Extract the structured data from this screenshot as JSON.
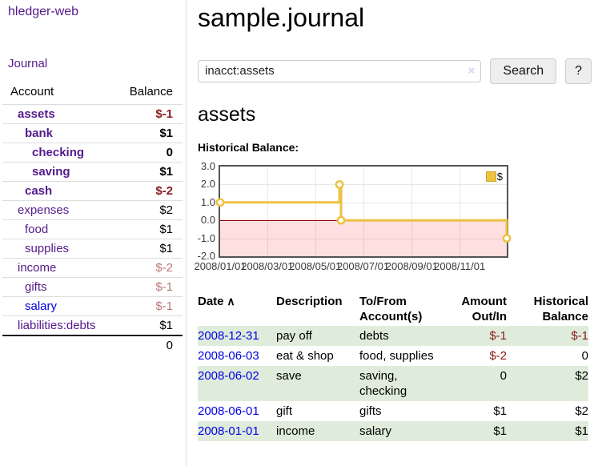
{
  "app": {
    "title": "hledger-web"
  },
  "sidebar": {
    "journal_link": "Journal",
    "headers": {
      "account": "Account",
      "balance": "Balance"
    },
    "accounts": [
      {
        "name": "assets",
        "depth": 0,
        "balance": "$-1",
        "bold": true
      },
      {
        "name": "bank",
        "depth": 1,
        "balance": "$1",
        "bold": true
      },
      {
        "name": "checking",
        "depth": 2,
        "balance": "0",
        "bold": true
      },
      {
        "name": "saving",
        "depth": 2,
        "balance": "$1",
        "bold": true
      },
      {
        "name": "cash",
        "depth": 1,
        "balance": "$-2",
        "bold": true
      },
      {
        "name": "expenses",
        "depth": 0,
        "balance": "$2"
      },
      {
        "name": "food",
        "depth": 1,
        "balance": "$1"
      },
      {
        "name": "supplies",
        "depth": 1,
        "balance": "$1"
      },
      {
        "name": "income",
        "depth": 0,
        "balance": "$-2"
      },
      {
        "name": "gifts",
        "depth": 1,
        "balance": "$-1"
      },
      {
        "name": "salary",
        "depth": 1,
        "balance": "$-1",
        "unvisited": true
      },
      {
        "name": "liabilities:debts",
        "depth": 0,
        "balance": "$1"
      }
    ],
    "total": "0"
  },
  "header": {
    "title": "sample.journal"
  },
  "search": {
    "value": "inacct:assets",
    "clear_icon": "×",
    "button_label": "Search",
    "help_label": "?"
  },
  "account_page": {
    "heading": "assets",
    "chart_label": "Historical Balance:"
  },
  "chart_data": {
    "type": "line",
    "step": true,
    "series": [
      {
        "name": "$",
        "color": "#edc240",
        "points": [
          [
            "2008-01-01",
            1
          ],
          [
            "2008-06-01",
            2
          ],
          [
            "2008-06-03",
            0
          ],
          [
            "2008-12-31",
            -1
          ]
        ]
      }
    ],
    "xrange": [
      "2008-01-01",
      "2008-12-31"
    ],
    "ylim": [
      -2,
      3
    ],
    "yticks": [
      "3.0",
      "2.0",
      "1.0",
      "0.0",
      "-1.0",
      "-2.0"
    ],
    "xticks": [
      "2008/01/01",
      "2008/03/01",
      "2008/05/01",
      "2008/07/01",
      "2008/09/01",
      "2008/11/01"
    ],
    "legend_label": "$",
    "legend_position": "top-right",
    "grid": true,
    "negative_fill": "rgba(255,0,0,0.12)",
    "zero_line_color": "#990000"
  },
  "transactions": {
    "sort_icon": "∧",
    "headers": [
      {
        "label": "Date",
        "sorted": true,
        "align": "left"
      },
      {
        "label": "Description",
        "align": "left"
      },
      {
        "label": "To/From Account(s)",
        "align": "left"
      },
      {
        "label": "Amount Out/In",
        "align": "right"
      },
      {
        "label": "Historical Balance",
        "align": "right"
      }
    ],
    "rows": [
      {
        "date": "2008-12-31",
        "description": "pay off",
        "accounts": "debts",
        "amount": "$-1",
        "balance": "$-1"
      },
      {
        "date": "2008-06-03",
        "description": "eat & shop",
        "accounts": "food, supplies",
        "amount": "$-2",
        "balance": "0"
      },
      {
        "date": "2008-06-02",
        "description": "save",
        "accounts": "saving, checking",
        "amount": "0",
        "balance": "$2"
      },
      {
        "date": "2008-06-01",
        "description": "gift",
        "accounts": "gifts",
        "amount": "$1",
        "balance": "$2"
      },
      {
        "date": "2008-01-01",
        "description": "income",
        "accounts": "salary",
        "amount": "$1",
        "balance": "$1"
      }
    ]
  },
  "colors": {
    "link_visited_purple": "#551a8b",
    "link_blue": "#0000e0",
    "negative_strong_red": "#8b1a1a",
    "negative_soft_red": "#b97876",
    "row_stripe_green": "#dfecdb",
    "chart_line_gold": "#edc240",
    "chart_border_gray": "#545454"
  }
}
